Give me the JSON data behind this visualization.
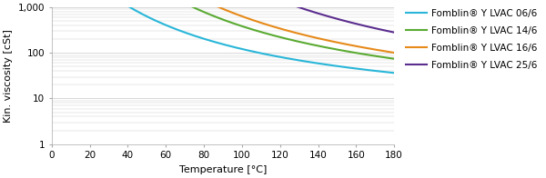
{
  "title": "",
  "xlabel": "Temperature [°C]",
  "ylabel": "Kin. viscosity [cSt]",
  "xlim": [
    0,
    180
  ],
  "ylim_log": [
    1,
    1000
  ],
  "xticks": [
    0,
    20,
    40,
    60,
    80,
    100,
    120,
    140,
    160,
    180
  ],
  "yticks": [
    1,
    10,
    100,
    1000
  ],
  "ytick_labels": [
    "1",
    "10",
    "100",
    "1,000"
  ],
  "series": [
    {
      "label": "Fomblin® Y LVAC 06/6",
      "color": "#29b6d8",
      "A": 580,
      "B": 60,
      "C": 1.18
    },
    {
      "label": "Fomblin® Y LVAC 14/6",
      "color": "#5aaa32",
      "A": 750,
      "B": 55,
      "C": 1.12
    },
    {
      "label": "Fomblin® Y LVAC 16/6",
      "color": "#e68a1a",
      "A": 820,
      "B": 53,
      "C": 1.1
    },
    {
      "label": "Fomblin® Y LVAC 25/6",
      "color": "#5b2d8e",
      "A": 1050,
      "B": 50,
      "C": 1.08
    }
  ],
  "background_color": "#ffffff",
  "grid_color": "#c8c8c8",
  "legend_fontsize": 7.5,
  "axis_fontsize": 8,
  "tick_fontsize": 7.5,
  "line_width": 1.5
}
